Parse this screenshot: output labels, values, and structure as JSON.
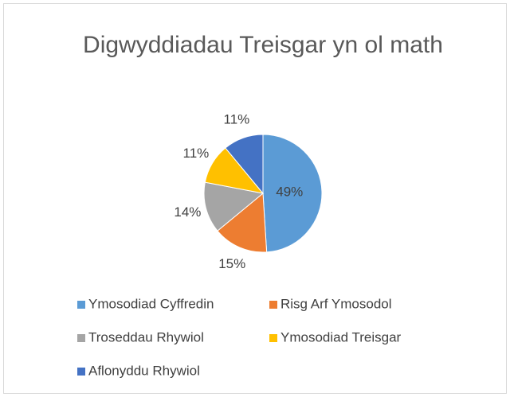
{
  "chart_data": {
    "type": "pie",
    "title": "Digwyddiadau Treisgar yn ol math",
    "categories": [
      "Ymosodiad Cyffredin",
      "Risg Arf Ymosodol",
      "Troseddau Rhywiol",
      "Ymosodiad Treisgar",
      "Aflonyddu Rhywiol"
    ],
    "values": [
      49,
      15,
      14,
      11,
      11
    ],
    "value_labels": [
      "49%",
      "15%",
      "14%",
      "11%",
      "11%"
    ],
    "colors": [
      "#5b9bd5",
      "#ed7d31",
      "#a5a5a5",
      "#ffc000",
      "#4472c4"
    ],
    "legend": "bottom"
  }
}
